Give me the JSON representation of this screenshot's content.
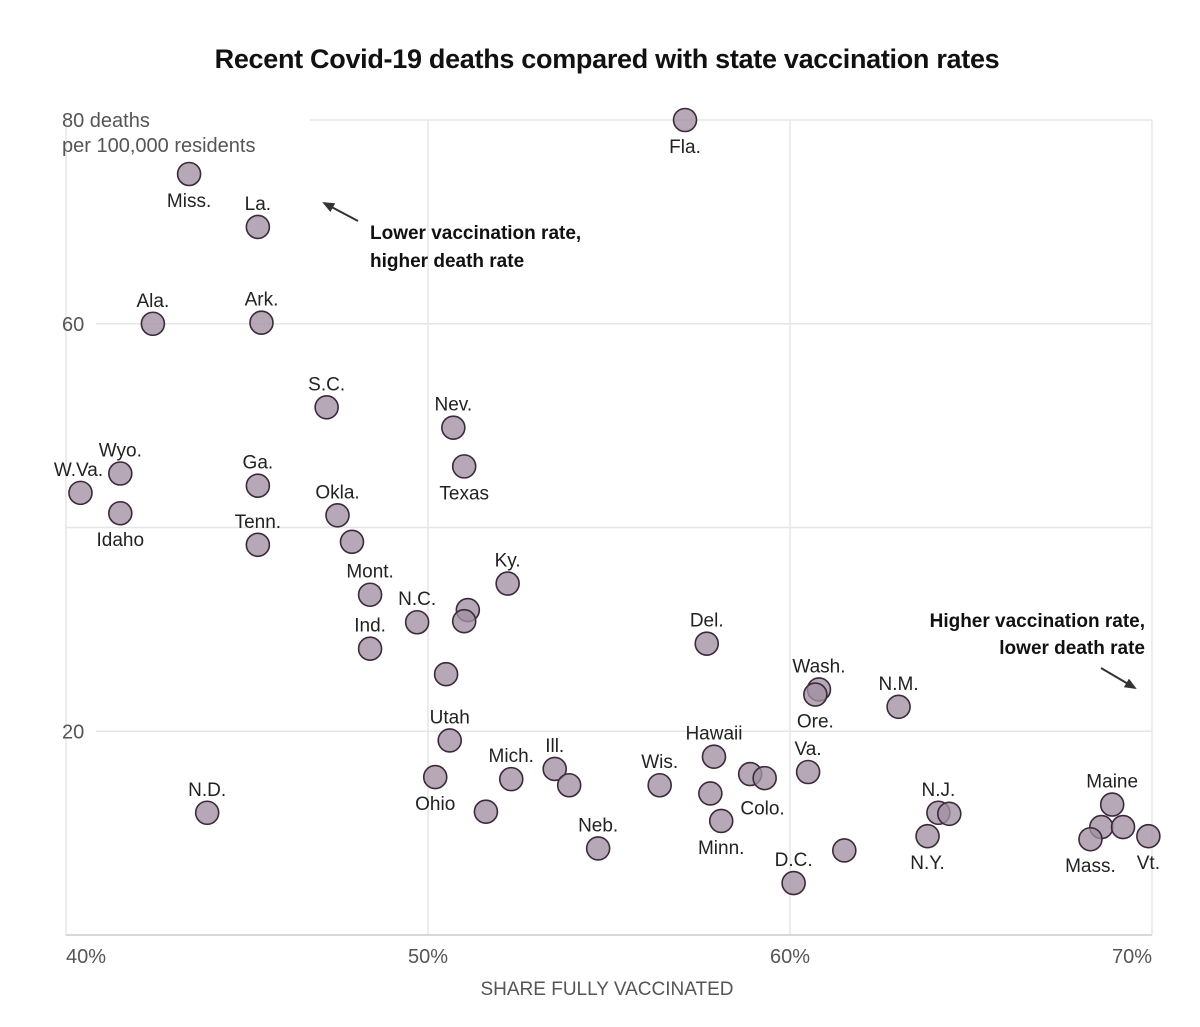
{
  "chart_data": {
    "type": "scatter",
    "title": "Recent Covid-19 deaths compared with state vaccination rates",
    "xlabel": "SHARE FULLY VACCINATED",
    "ylabel": "deaths per 100,000 residents",
    "xlim": [
      40,
      70
    ],
    "ylim": [
      0,
      80
    ],
    "x_unit": "%",
    "x_ticks": [
      {
        "value": 40,
        "label": "40%"
      },
      {
        "value": 50,
        "label": "50%"
      },
      {
        "value": 60,
        "label": "60%"
      },
      {
        "value": 70,
        "label": "70%"
      }
    ],
    "y_ticks": [
      {
        "value": 80,
        "label": "80 deaths",
        "sublabel": "per 100,000 residents"
      },
      {
        "value": 60,
        "label": "60"
      },
      {
        "value": 40,
        "label": ""
      },
      {
        "value": 20,
        "label": "20"
      }
    ],
    "grid": true,
    "annotations": [
      {
        "lines": [
          "Lower vaccination rate,",
          "higher death rate"
        ],
        "anchor": "upper-left"
      },
      {
        "lines": [
          "Higher vaccination rate,",
          "lower death rate"
        ],
        "anchor": "lower-right"
      }
    ],
    "points": [
      {
        "label": "Fla.",
        "x": 57.1,
        "y": 80.0,
        "pos": "below"
      },
      {
        "label": "Miss.",
        "x": 43.4,
        "y": 74.7,
        "pos": "below"
      },
      {
        "label": "La.",
        "x": 45.3,
        "y": 69.5,
        "pos": "above"
      },
      {
        "label": "Ala.",
        "x": 42.4,
        "y": 60.0,
        "pos": "above"
      },
      {
        "label": "Ark.",
        "x": 45.4,
        "y": 60.1,
        "pos": "above"
      },
      {
        "label": "S.C.",
        "x": 47.2,
        "y": 51.8,
        "pos": "above"
      },
      {
        "label": "Nev.",
        "x": 50.7,
        "y": 49.8,
        "pos": "above"
      },
      {
        "label": "Texas",
        "x": 51.0,
        "y": 46.0,
        "pos": "below"
      },
      {
        "label": "Wyo.",
        "x": 41.5,
        "y": 45.3,
        "pos": "above"
      },
      {
        "label": "W.Va.",
        "x": 40.4,
        "y": 43.4,
        "pos": "left"
      },
      {
        "label": "Ga.",
        "x": 45.3,
        "y": 44.1,
        "pos": "above"
      },
      {
        "label": "Idaho",
        "x": 41.5,
        "y": 41.4,
        "pos": "below"
      },
      {
        "label": "Okla.",
        "x": 47.5,
        "y": 41.2,
        "pos": "above"
      },
      {
        "label": "Tenn.",
        "x": 45.3,
        "y": 38.3,
        "pos": "above"
      },
      {
        "label": "",
        "x": 47.9,
        "y": 38.6,
        "pos": "none"
      },
      {
        "label": "Ky.",
        "x": 52.2,
        "y": 34.5,
        "pos": "above"
      },
      {
        "label": "Mont.",
        "x": 48.4,
        "y": 33.4,
        "pos": "above"
      },
      {
        "label": "",
        "x": 51.1,
        "y": 31.9,
        "pos": "none"
      },
      {
        "label": "",
        "x": 51.0,
        "y": 30.8,
        "pos": "none"
      },
      {
        "label": "N.C.",
        "x": 49.7,
        "y": 30.7,
        "pos": "above"
      },
      {
        "label": "Del.",
        "x": 57.7,
        "y": 28.6,
        "pos": "above"
      },
      {
        "label": "Ind.",
        "x": 48.4,
        "y": 28.1,
        "pos": "above"
      },
      {
        "label": "",
        "x": 50.5,
        "y": 25.6,
        "pos": "none"
      },
      {
        "label": "Wash.",
        "x": 60.8,
        "y": 24.1,
        "pos": "above"
      },
      {
        "label": "Ore.",
        "x": 60.7,
        "y": 23.6,
        "pos": "below"
      },
      {
        "label": "N.M.",
        "x": 63.0,
        "y": 22.4,
        "pos": "above"
      },
      {
        "label": "Utah",
        "x": 50.6,
        "y": 19.1,
        "pos": "above"
      },
      {
        "label": "Hawaii",
        "x": 57.9,
        "y": 17.5,
        "pos": "above"
      },
      {
        "label": "Ill.",
        "x": 53.5,
        "y": 16.3,
        "pos": "above"
      },
      {
        "label": "Va.",
        "x": 60.5,
        "y": 16.0,
        "pos": "above"
      },
      {
        "label": "",
        "x": 58.9,
        "y": 15.8,
        "pos": "none"
      },
      {
        "label": "",
        "x": 59.3,
        "y": 15.4,
        "pos": "none"
      },
      {
        "label": "Ohio",
        "x": 50.2,
        "y": 15.5,
        "pos": "below"
      },
      {
        "label": "Mich.",
        "x": 52.3,
        "y": 15.3,
        "pos": "above"
      },
      {
        "label": "Wis.",
        "x": 56.4,
        "y": 14.7,
        "pos": "above"
      },
      {
        "label": "",
        "x": 53.9,
        "y": 14.7,
        "pos": "none"
      },
      {
        "label": "Colo.",
        "x": 57.8,
        "y": 13.9,
        "pos": "below-right"
      },
      {
        "label": "Maine",
        "x": 68.9,
        "y": 12.8,
        "pos": "above"
      },
      {
        "label": "N.D.",
        "x": 43.9,
        "y": 12.0,
        "pos": "above"
      },
      {
        "label": "",
        "x": 51.6,
        "y": 12.1,
        "pos": "none"
      },
      {
        "label": "N.J.",
        "x": 64.1,
        "y": 12.0,
        "pos": "above"
      },
      {
        "label": "",
        "x": 64.4,
        "y": 11.9,
        "pos": "none"
      },
      {
        "label": "Minn.",
        "x": 58.1,
        "y": 11.2,
        "pos": "below"
      },
      {
        "label": "",
        "x": 68.6,
        "y": 10.6,
        "pos": "none"
      },
      {
        "label": "",
        "x": 69.2,
        "y": 10.6,
        "pos": "none"
      },
      {
        "label": "N.Y.",
        "x": 63.8,
        "y": 9.7,
        "pos": "below"
      },
      {
        "label": "Vt.",
        "x": 69.9,
        "y": 9.7,
        "pos": "below"
      },
      {
        "label": "Mass.",
        "x": 68.3,
        "y": 9.4,
        "pos": "below"
      },
      {
        "label": "Neb.",
        "x": 54.7,
        "y": 8.5,
        "pos": "above"
      },
      {
        "label": "",
        "x": 61.5,
        "y": 8.3,
        "pos": "none"
      },
      {
        "label": "D.C.",
        "x": 60.1,
        "y": 5.1,
        "pos": "above"
      }
    ]
  }
}
